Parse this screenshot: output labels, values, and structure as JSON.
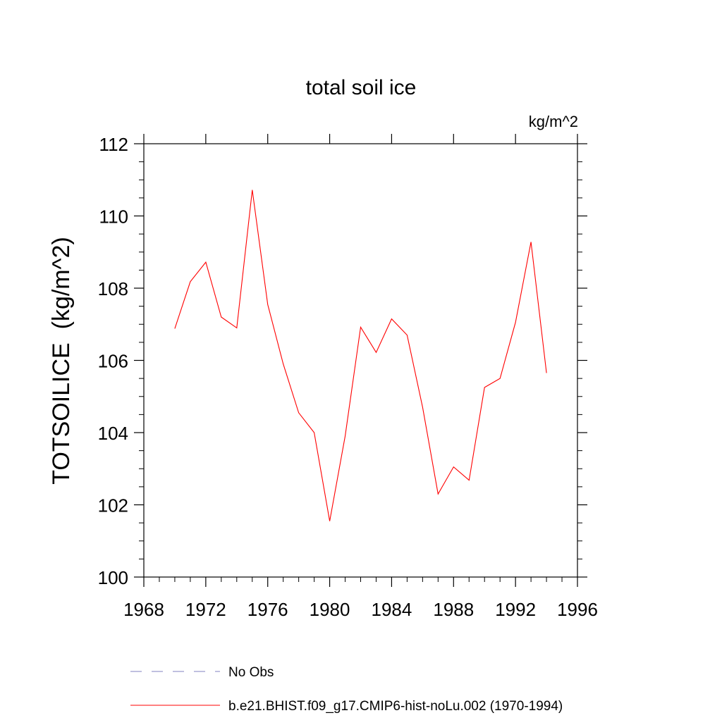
{
  "chart_data": {
    "type": "line",
    "title": "total soil ice",
    "units_label": "kg/m^2",
    "ylabel": "TOTSOILICE  (kg/m^2)",
    "xlabel": "",
    "xlim": [
      1968,
      1996
    ],
    "ylim": [
      100,
      112
    ],
    "x_ticks": [
      1968,
      1972,
      1976,
      1980,
      1984,
      1988,
      1992,
      1996
    ],
    "y_ticks": [
      100,
      102,
      104,
      106,
      108,
      110,
      112
    ],
    "grid": false,
    "legend_position": "bottom",
    "series": [
      {
        "name": "b.e21.BHIST.f09_g17.CMIP6-hist-noLu.002 (1970-1994)",
        "color": "#ff0000",
        "style": "solid",
        "x": [
          1970,
          1971,
          1972,
          1973,
          1974,
          1975,
          1976,
          1977,
          1978,
          1979,
          1980,
          1981,
          1982,
          1983,
          1984,
          1985,
          1986,
          1987,
          1988,
          1989,
          1990,
          1991,
          1992,
          1993,
          1994
        ],
        "y": [
          106.88,
          108.18,
          108.72,
          107.2,
          106.9,
          110.72,
          107.55,
          105.9,
          104.55,
          104.0,
          101.55,
          103.9,
          106.92,
          106.22,
          107.15,
          106.7,
          104.7,
          102.3,
          103.05,
          102.68,
          105.25,
          105.5,
          107.05,
          109.28,
          105.65
        ]
      }
    ],
    "legend": [
      {
        "label": "No Obs",
        "color": "#8080c0",
        "style": "dashed"
      },
      {
        "label": "b.e21.BHIST.f09_g17.CMIP6-hist-noLu.002 (1970-1994)",
        "color": "#ff0000",
        "style": "solid"
      }
    ]
  }
}
